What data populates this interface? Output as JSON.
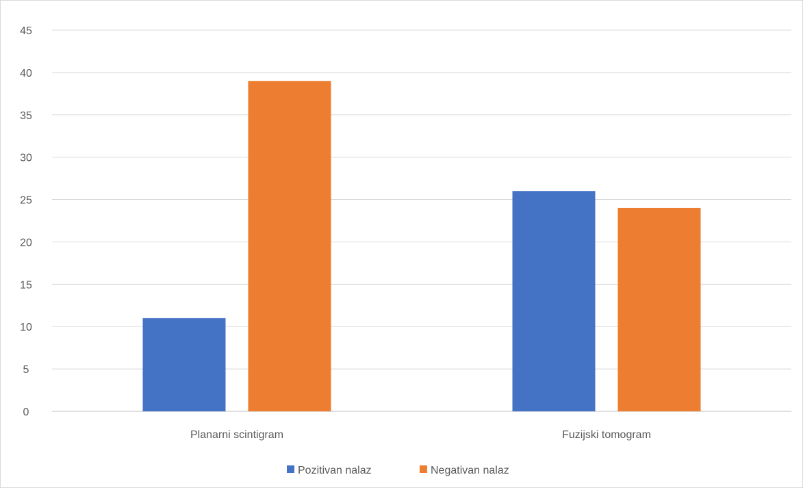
{
  "chart_data": {
    "type": "bar",
    "title": "",
    "xlabel": "",
    "ylabel": "",
    "categories": [
      "Planarni scintigram",
      "Fuzijski tomogram"
    ],
    "series": [
      {
        "name": "Pozitivan nalaz",
        "values": [
          11,
          26
        ],
        "color": "#4472c4"
      },
      {
        "name": "Negativan nalaz",
        "values": [
          39,
          24
        ],
        "color": "#ed7d31"
      }
    ],
    "ylim": [
      0,
      45
    ],
    "yticks": [
      0,
      5,
      10,
      15,
      20,
      25,
      30,
      35,
      40,
      45
    ],
    "grid": true,
    "legend_position": "bottom"
  }
}
